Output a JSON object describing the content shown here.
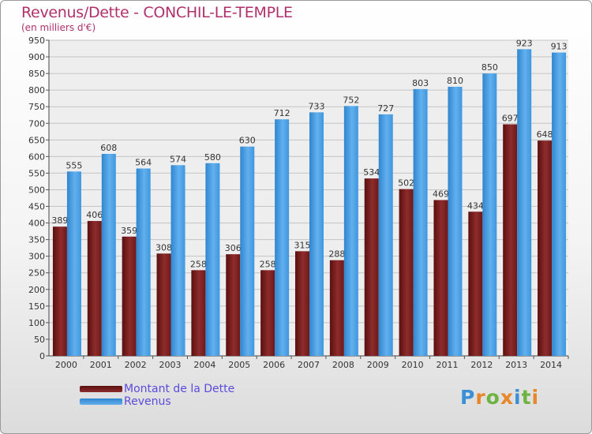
{
  "chart_data": {
    "type": "bar",
    "title": "Revenus/Dette - CONCHIL-LE-TEMPLE",
    "subtitle": "(en milliers d'€)",
    "categories": [
      "2000",
      "2001",
      "2002",
      "2003",
      "2004",
      "2005",
      "2006",
      "2007",
      "2008",
      "2009",
      "2010",
      "2011",
      "2012",
      "2013",
      "2014"
    ],
    "series": [
      {
        "name": "Montant de la Dette",
        "color": "#7a1c1c",
        "values": [
          389,
          406,
          359,
          308,
          258,
          306,
          258,
          315,
          288,
          534,
          502,
          469,
          434,
          697,
          648
        ]
      },
      {
        "name": "Revenus",
        "color": "#4a9be0",
        "values": [
          555,
          608,
          564,
          574,
          580,
          630,
          712,
          733,
          752,
          727,
          803,
          810,
          850,
          923,
          913
        ]
      }
    ],
    "ylim": [
      0,
      950
    ],
    "yticks": [
      0,
      50,
      100,
      150,
      200,
      250,
      300,
      350,
      400,
      450,
      500,
      550,
      600,
      650,
      700,
      750,
      800,
      850,
      900,
      950
    ],
    "grid": true,
    "legend_position": "bottom-left"
  },
  "logo": {
    "letters": [
      "P",
      "r",
      "o",
      "x",
      "i",
      "t",
      "i"
    ],
    "colors": [
      "#3b8fd6",
      "#e8862a",
      "#6cb33f",
      "#e8862a",
      "#3b8fd6",
      "#6cb33f",
      "#e8862a"
    ]
  }
}
